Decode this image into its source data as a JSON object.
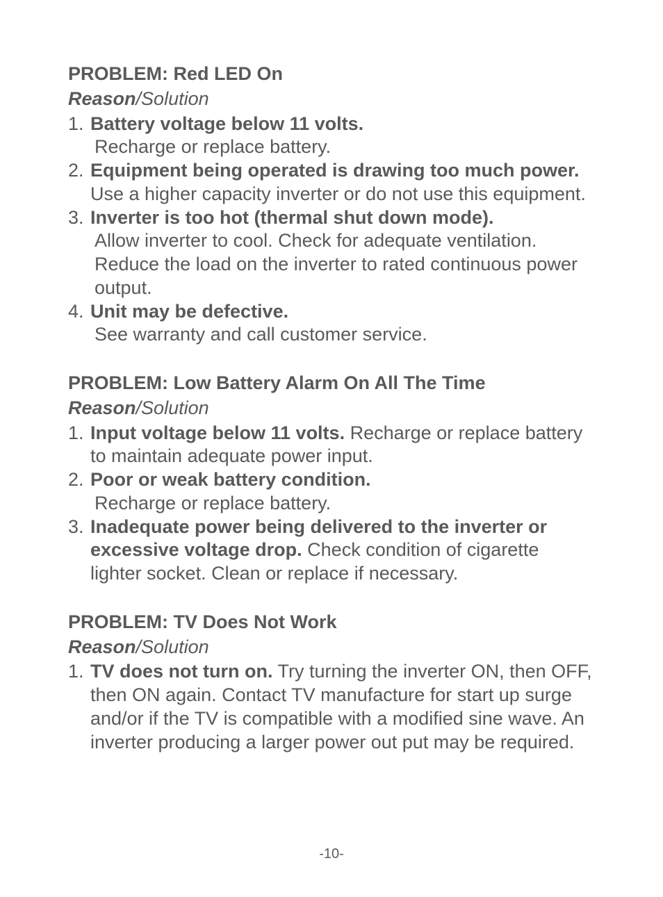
{
  "sections": [
    {
      "problemTitle": "PROBLEM: Red LED On",
      "reasonBold": "Reason",
      "reasonItalic": "/Solution",
      "items": [
        {
          "num": "1.",
          "bold": "Battery voltage below 11 volts.",
          "tail": "",
          "indent": "Recharge or replace battery."
        },
        {
          "num": "2.",
          "bold": "Equipment being operated is drawing too much power.",
          "tail": "  Use a higher capacity inverter or do not use this equipment.",
          "indent": ""
        },
        {
          "num": "3.",
          "bold": "Inverter is too hot (thermal shut down mode).",
          "tail": "",
          "indent": "Allow inverter to cool. Check for adequate ventilation. Reduce the load on the inverter to rated continuous power output."
        },
        {
          "num": "4.",
          "bold": "Unit may be defective.",
          "tail": "",
          "indent": "See warranty and call customer service."
        }
      ]
    },
    {
      "problemTitle": "PROBLEM: Low Battery Alarm On All The Time",
      "reasonBold": "Reason",
      "reasonItalic": "/Solution",
      "items": [
        {
          "num": "1.",
          "bold": "Input voltage below 11 volts.",
          "tail": "  Recharge or replace battery to maintain adequate power input.",
          "indent": ""
        },
        {
          "num": "2.",
          "bold": "Poor or weak battery condition.",
          "tail": "",
          "indent": "Recharge or replace battery."
        },
        {
          "num": "3.",
          "bold": "Inadequate power being delivered to the inverter or excessive voltage drop.",
          "tail": "  Check condition of cigarette lighter socket. Clean or replace if necessary.",
          "indent": ""
        }
      ]
    },
    {
      "problemTitle": "PROBLEM: TV Does Not Work",
      "reasonBold": "Reason",
      "reasonItalic": "/Solution",
      "items": [
        {
          "num": "1.",
          "bold": "TV does not turn on.",
          "tail": " Try turning the inverter ON, then OFF, then ON again.  Contact TV manufacture for start up surge and/or if the TV is compatible with a modified sine wave.  An inverter producing a larger power out put may be required.",
          "indent": ""
        }
      ]
    }
  ],
  "pageNumber": "-10-"
}
